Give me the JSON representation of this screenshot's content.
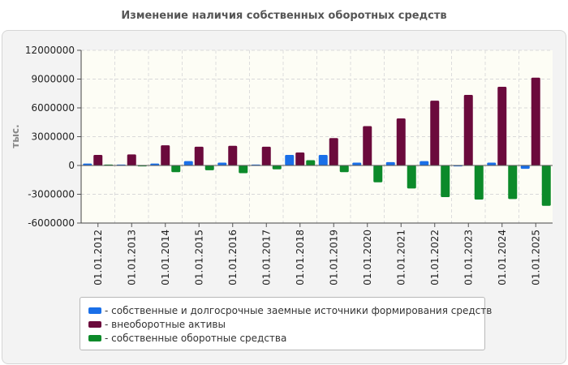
{
  "chart_data": {
    "type": "bar",
    "title": "Изменение наличия собственных оборотных средств",
    "xlabel": "",
    "ylabel": "тыс.",
    "ylim": [
      -6000000,
      12000000
    ],
    "yticks": [
      12000000,
      9000000,
      6000000,
      3000000,
      0,
      -3000000,
      -6000000
    ],
    "ytick_labels": [
      "12000000",
      "9000000",
      "6000000",
      "3000000",
      "0",
      "-3000000",
      "-6000000"
    ],
    "categories": [
      "01.01.2012",
      "01.01.2013",
      "01.01.2014",
      "01.01.2015",
      "01.01.2016",
      "01.01.2017",
      "01.01.2018",
      "01.01.2019",
      "01.01.2020",
      "01.01.2021",
      "01.01.2022",
      "01.01.2023",
      "01.01.2024",
      "01.01.2025"
    ],
    "series": [
      {
        "name": "собственные и долгосрочные заемные источники формирования средств",
        "color": "#1a6fe8",
        "values": [
          200000,
          100000,
          200000,
          450000,
          300000,
          100000,
          1100000,
          1100000,
          300000,
          350000,
          450000,
          -100000,
          300000,
          -350000
        ]
      },
      {
        "name": "внеоборотные активы",
        "color": "#6b0a3c",
        "values": [
          1100000,
          1150000,
          2100000,
          1950000,
          2050000,
          1950000,
          1350000,
          2850000,
          4100000,
          4900000,
          6750000,
          7350000,
          8200000,
          9150000
        ]
      },
      {
        "name": "собственные оборотные средства",
        "color": "#0c8a2a",
        "values": [
          100000,
          -100000,
          -700000,
          -500000,
          -800000,
          -400000,
          550000,
          -700000,
          -1750000,
          -2400000,
          -3300000,
          -3550000,
          -3500000,
          -4200000
        ]
      }
    ],
    "legend": "bottom",
    "grid": true
  },
  "legend_items": [
    {
      "label": "- собственные и долгосрочные заемные источники формирования средств",
      "color": "#1a6fe8"
    },
    {
      "label": "- внеоборотные активы",
      "color": "#6b0a3c"
    },
    {
      "label": "- собственные оборотные средства",
      "color": "#0c8a2a"
    }
  ]
}
